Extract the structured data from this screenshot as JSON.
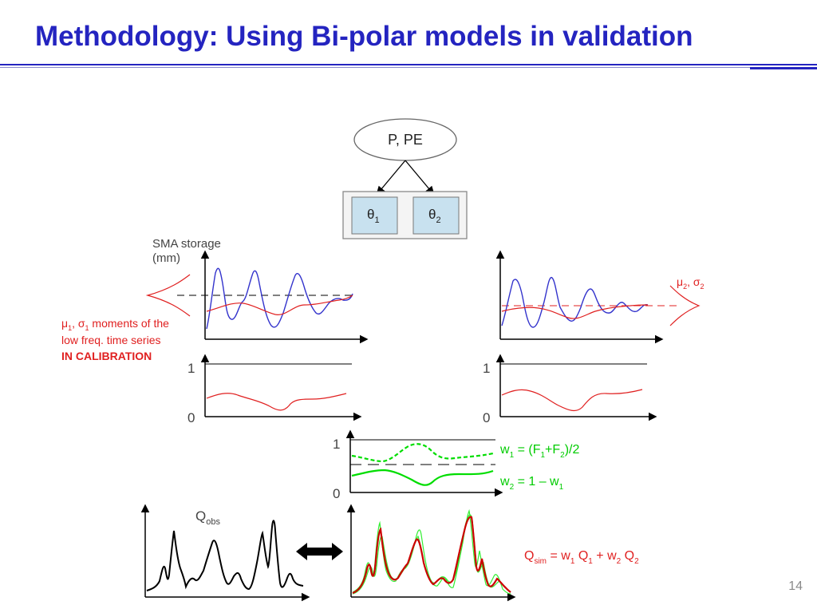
{
  "slide": {
    "title": "Methodology: Using Bi-polar models in validation",
    "page_number": "14"
  },
  "colors": {
    "title": "#2424c0",
    "observed": "#000000",
    "simulated_blue": "#3333cc",
    "low_freq_red": "#e02020",
    "weight_green": "#00dd00"
  },
  "diagram": {
    "root_node": "P, PE",
    "theta1": {
      "sym": "θ",
      "sub": "1"
    },
    "theta2": {
      "sym": "θ",
      "sub": "2"
    },
    "sma_label_line1": "SMA storage",
    "sma_label_line2": "(mm)",
    "left_dist": {
      "mu": "μ",
      "mu_sub": "1",
      "sep": ", ",
      "sigma": "σ",
      "sigma_sub": "1",
      "rest": " moments of the"
    },
    "left_desc_line2": "low freq. time series",
    "left_desc_line3": "IN CALIBRATION",
    "right_dist": {
      "mu": "μ",
      "mu_sub": "2",
      "sep": ", ",
      "sigma": "σ",
      "sigma_sub": "2"
    },
    "axis_one": "1",
    "axis_zero": "0",
    "w1_eq": {
      "w": "w",
      "w_sub": "1",
      "mid": " = (F",
      "f1_sub": "1",
      "plus": "+F",
      "f2_sub": "2",
      "end": ")/2"
    },
    "w2_eq": {
      "w": "w",
      "w_sub": "2",
      "mid": " = 1 – w",
      "end_sub": "1"
    },
    "qobs": {
      "q": "Q",
      "sub": "obs"
    },
    "qsim": {
      "q": "Q",
      "sub": "sim",
      "a": " = w",
      "a_sub": "1",
      "b": " Q",
      "b_sub": "1",
      "c": " + w",
      "c_sub": "2",
      "d": " Q",
      "d_sub": "2"
    }
  }
}
